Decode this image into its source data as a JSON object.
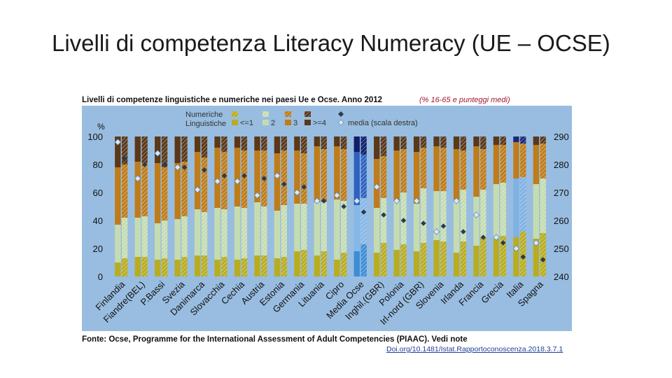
{
  "title": "Livelli di competenza Literacy Numeracy (UE – OCSE)",
  "doi": "Doi.org/10.1481/Istat.Rapportoconoscenza.2018.3.7.1",
  "colors": {
    "chart_bg": "#99bde0",
    "level1": "#b9ad1f",
    "level2": "#c5dcb0",
    "level3": "#bf7c18",
    "level4": "#5a3818",
    "media_ocse_level1": "#3d8dd6",
    "media_ocse_level2": "#85b7e8",
    "media_ocse_level3": "#2e62c0",
    "media_ocse_level4": "#111e6b",
    "italia_level2": "#7fb2e3",
    "italia_level4": "#1b2a78",
    "numeracy_marker": "#2b3a4e",
    "literacy_marker": "#d8e8f7"
  },
  "chart_data": {
    "type": "bar",
    "stacked": true,
    "title": "Livelli di competenze linguistiche e numeriche nei paesi Ue e Ocse. Anno 2012",
    "subtitle": "(% 16-65 e punteggi medi)",
    "source": "Fonte: Ocse, Programme for the International Assessment of Adult Competencies (PIAAC). Vedi note",
    "left_axis": {
      "unit": "%",
      "ylim": [
        0,
        100
      ],
      "ticks": [
        "0",
        "20",
        "40",
        "60",
        "80",
        "100"
      ]
    },
    "right_axis": {
      "label": "media (scala destra)",
      "ylim": [
        240,
        290
      ],
      "ticks": [
        "240",
        "250",
        "260",
        "270",
        "280",
        "290"
      ]
    },
    "legend": {
      "row_numeracy": "Numeriche",
      "row_literacy": "Linguistiche",
      "levels": [
        "<=1",
        "2",
        "3",
        ">=4"
      ],
      "mean_label": "media (scala destra)"
    },
    "categories": [
      "Finlandia",
      "Fiandre(BEL)",
      "P.Bassi",
      "Svezia",
      "Danimarca",
      "Slovacchia",
      "Cechia",
      "Austria",
      "Estonia",
      "Germania",
      "Lituania",
      "Cipro",
      "Media Ocse",
      "Inghil.(GBR)",
      "Polonia",
      "Irl-nord (GBR)",
      "Slovenia",
      "Irlanda",
      "Francia",
      "Grecia",
      "Italia",
      "Spagna"
    ],
    "numeracy_series": [
      {
        "name": "<=1",
        "values": [
          13,
          14,
          13,
          14,
          15,
          14,
          13,
          15,
          14,
          19,
          18,
          17,
          23,
          24,
          23,
          24,
          25,
          25,
          28,
          29,
          32,
          31
        ]
      },
      {
        "name": "2",
        "values": [
          29,
          29,
          27,
          29,
          31,
          34,
          36,
          35,
          37,
          33,
          35,
          37,
          33,
          32,
          37,
          39,
          36,
          37,
          34,
          38,
          39,
          39
        ]
      },
      {
        "name": "3",
        "values": [
          38,
          38,
          38,
          39,
          39,
          41,
          41,
          40,
          39,
          36,
          38,
          37,
          31,
          30,
          31,
          29,
          31,
          28,
          29,
          27,
          24,
          25
        ]
      },
      {
        "name": ">=4",
        "values": [
          20,
          19,
          22,
          18,
          15,
          11,
          10,
          10,
          10,
          12,
          9,
          9,
          13,
          14,
          9,
          8,
          8,
          10,
          9,
          6,
          5,
          5
        ]
      }
    ],
    "literacy_series": [
      {
        "name": "<=1",
        "values": [
          10,
          14,
          12,
          12,
          15,
          12,
          12,
          15,
          13,
          18,
          15,
          12,
          18,
          17,
          19,
          18,
          26,
          17,
          22,
          27,
          28,
          27
        ]
      },
      {
        "name": "2",
        "values": [
          27,
          28,
          26,
          29,
          33,
          37,
          38,
          38,
          34,
          34,
          38,
          43,
          33,
          32,
          35,
          34,
          35,
          38,
          35,
          39,
          42,
          39
        ]
      },
      {
        "name": "3",
        "values": [
          41,
          40,
          43,
          40,
          41,
          43,
          42,
          37,
          41,
          38,
          40,
          38,
          38,
          35,
          36,
          37,
          32,
          36,
          36,
          28,
          26,
          28
        ]
      },
      {
        "name": ">=4",
        "values": [
          22,
          18,
          19,
          19,
          11,
          8,
          8,
          10,
          12,
          10,
          7,
          7,
          11,
          16,
          10,
          11,
          7,
          9,
          7,
          6,
          4,
          6
        ]
      }
    ],
    "numeracy_mean": [
      282,
      280,
      280,
      279,
      278,
      276,
      276,
      275,
      273,
      272,
      267,
      265,
      263,
      262,
      260,
      259,
      258,
      256,
      254,
      252,
      247,
      246
    ],
    "literacy_mean": [
      288,
      275,
      284,
      279,
      271,
      274,
      274,
      269,
      276,
      270,
      267,
      269,
      267,
      272,
      267,
      267,
      256,
      267,
      262,
      254,
      250,
      252
    ]
  }
}
